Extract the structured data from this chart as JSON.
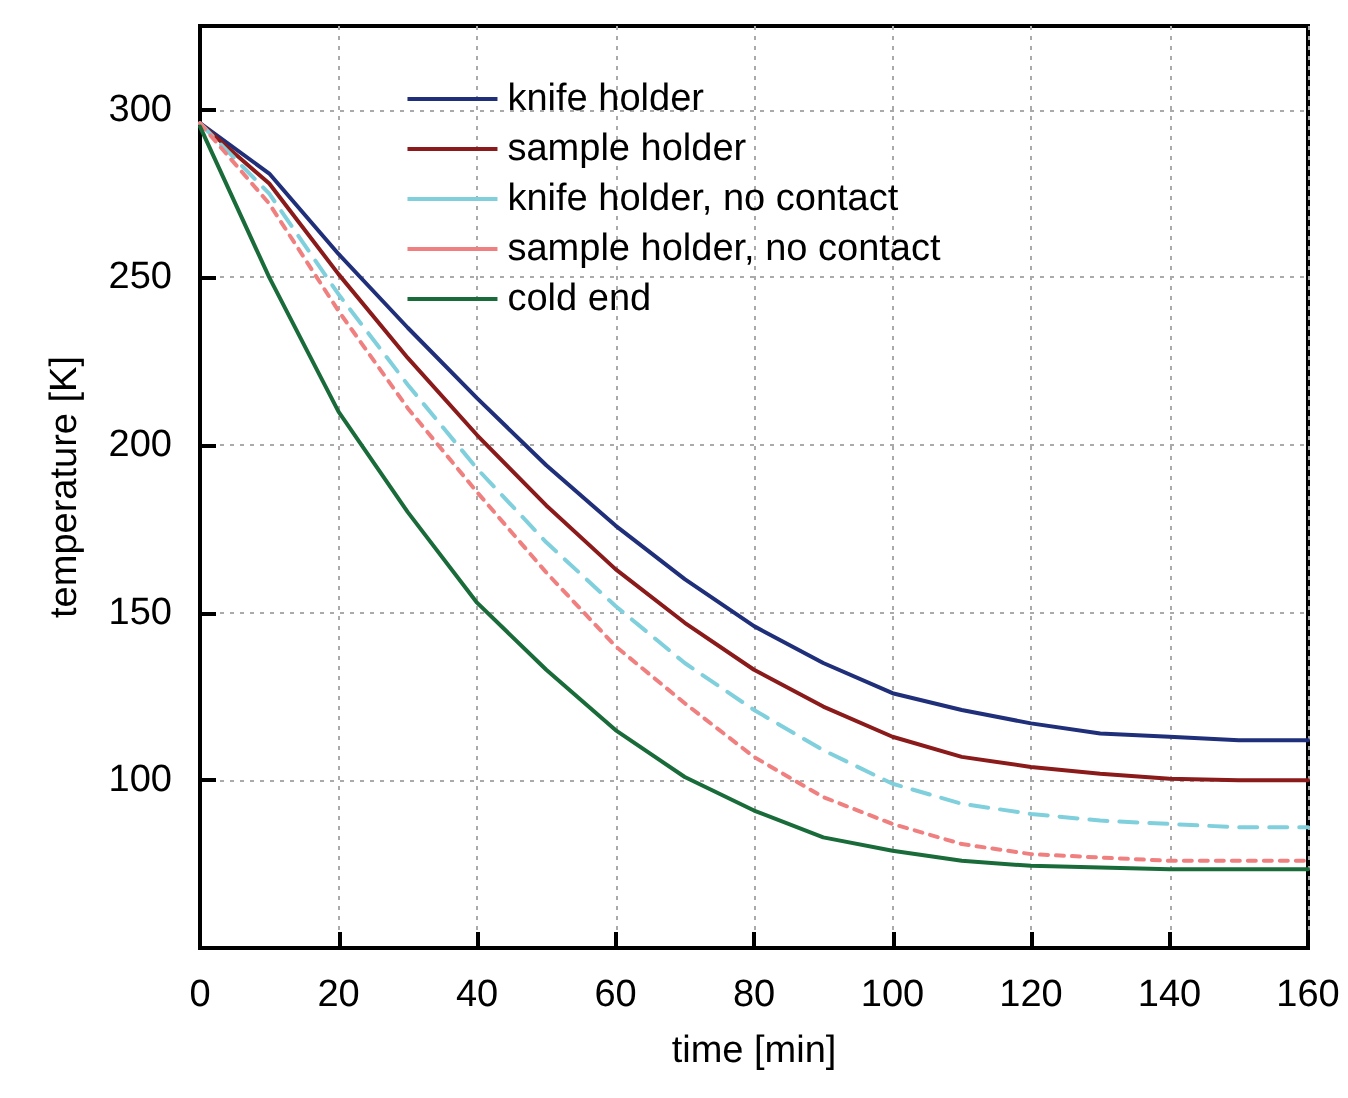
{
  "chart_data": {
    "type": "line",
    "xlabel": "time [min]",
    "ylabel": "temperature [K]",
    "x": [
      0,
      10,
      20,
      30,
      40,
      50,
      60,
      70,
      80,
      90,
      100,
      110,
      120,
      130,
      140,
      150,
      160
    ],
    "xlim": [
      0,
      160
    ],
    "xticks": [
      0,
      20,
      40,
      60,
      80,
      100,
      120,
      140,
      160
    ],
    "ylim": [
      50,
      325
    ],
    "yticks": [
      100,
      150,
      200,
      250,
      300
    ],
    "grid": true,
    "legend": "top",
    "marker": "none",
    "series": [
      {
        "name": "knife holder",
        "color": "#1f2f7a",
        "line_style": "solid",
        "values": [
          296,
          281,
          257,
          235,
          214,
          194,
          176,
          160,
          146,
          135,
          126,
          121,
          117,
          114,
          113,
          112,
          112
        ]
      },
      {
        "name": "sample holder",
        "color": "#8b1a1a",
        "line_style": "solid",
        "values": [
          296,
          278,
          251,
          226,
          203,
          182,
          163,
          147,
          133,
          122,
          113,
          107,
          104,
          102,
          100.5,
          100,
          100
        ]
      },
      {
        "name": "knife holder, no contact",
        "color": "#7fd0dc",
        "line_style": "dashed",
        "values": [
          296,
          275,
          245,
          218,
          193,
          171,
          152,
          135,
          121,
          109,
          99,
          93,
          90,
          88,
          87,
          86,
          86
        ]
      },
      {
        "name": "sample holder, no contact",
        "color": "#f08080",
        "line_style": "dotted",
        "values": [
          296,
          272,
          240,
          211,
          186,
          162,
          140,
          123,
          107,
          95,
          87,
          81,
          78,
          77,
          76,
          76,
          76
        ]
      },
      {
        "name": "cold end",
        "color": "#1a6b3a",
        "line_style": "solid",
        "values": [
          295,
          250,
          210,
          180,
          153,
          133,
          115,
          101,
          91,
          83,
          79,
          76,
          74.5,
          74,
          73.5,
          73.5,
          73.5
        ]
      }
    ]
  }
}
